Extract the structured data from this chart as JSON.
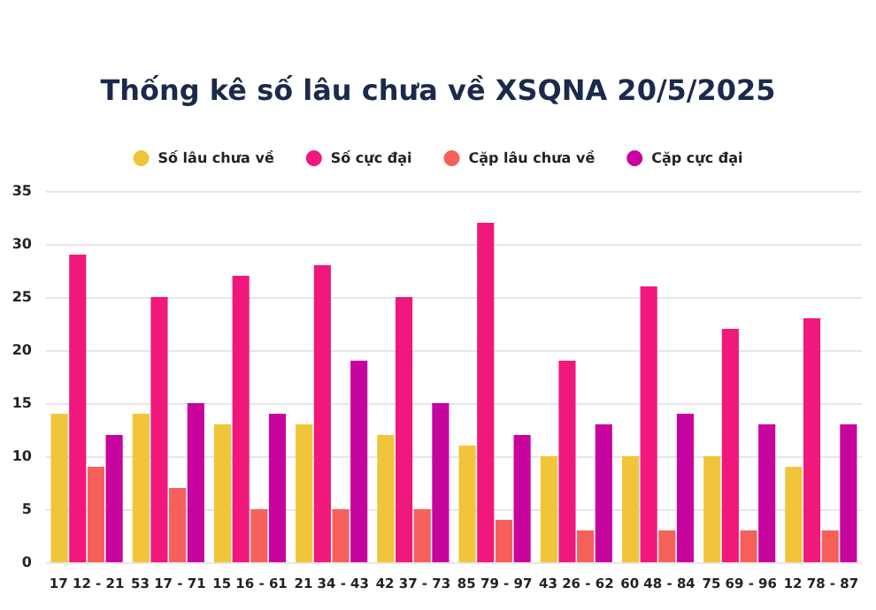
{
  "chart_data": {
    "type": "bar",
    "title": "Thống kê số lâu chưa về XSQNA 20/5/2025",
    "categories": [
      "17 12 - 21",
      "53 17 - 71",
      "15 16 - 61",
      "21 34 - 43",
      "42 37 - 73",
      "85 79 - 97",
      "43 26 - 62",
      "60 48 - 84",
      "75 69 - 96",
      "12 78 - 87"
    ],
    "series": [
      {
        "name": "Số lâu chưa về",
        "color": "#f0c53a",
        "values": [
          14,
          14,
          13,
          13,
          12,
          11,
          10,
          10,
          10,
          9
        ]
      },
      {
        "name": "Số cực đại",
        "color": "#f0187a",
        "values": [
          29,
          25,
          27,
          28,
          25,
          32,
          19,
          26,
          22,
          23
        ]
      },
      {
        "name": "Cặp lâu chưa về",
        "color": "#f5615a",
        "values": [
          9,
          7,
          5,
          5,
          5,
          4,
          3,
          3,
          3,
          3
        ]
      },
      {
        "name": "Cặp cực đại",
        "color": "#c8049e",
        "values": [
          12,
          15,
          14,
          19,
          15,
          12,
          13,
          14,
          13,
          13
        ]
      }
    ],
    "ylim": [
      0,
      35
    ],
    "yticks": [
      0,
      5,
      10,
      15,
      20,
      25,
      30,
      35
    ],
    "grid": "y",
    "legend": "top"
  }
}
